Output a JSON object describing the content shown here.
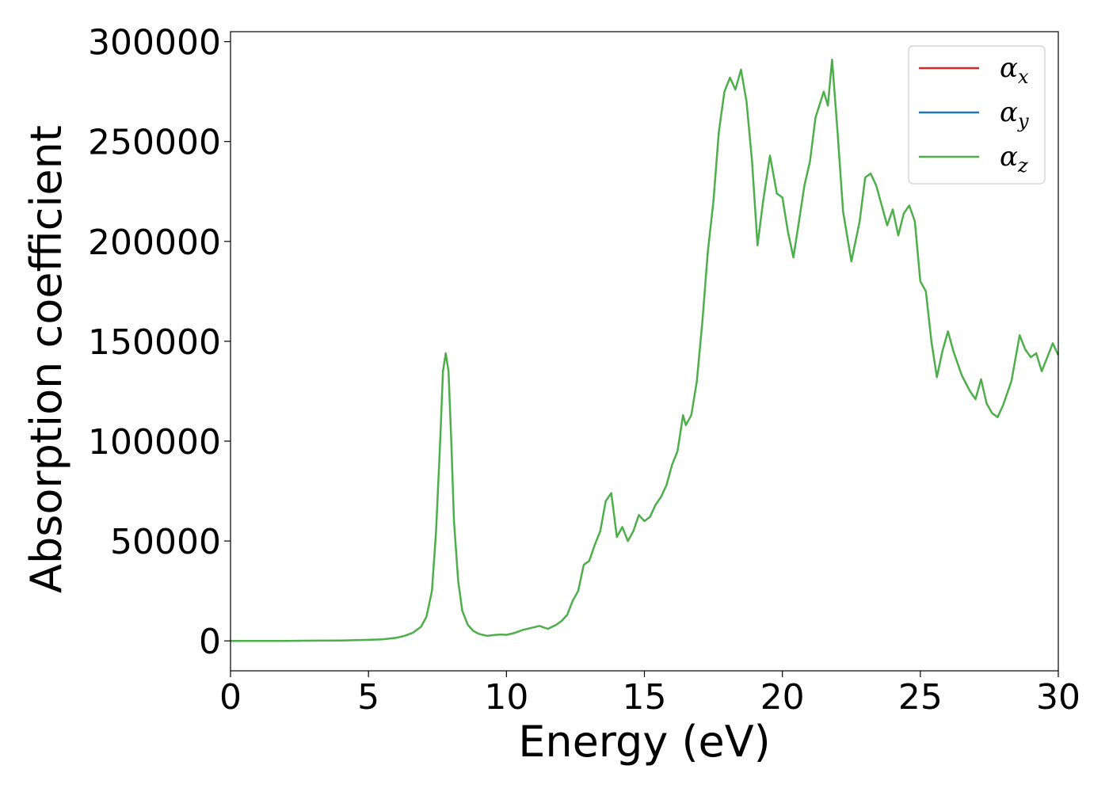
{
  "chart_data": {
    "type": "line",
    "title": "",
    "xlabel": "Energy (eV)",
    "ylabel": "Absorption coefficient",
    "xlim": [
      0,
      30
    ],
    "ylim": [
      -15000,
      305000
    ],
    "xticks": [
      0,
      5,
      10,
      15,
      20,
      25,
      30
    ],
    "yticks": [
      0,
      50000,
      100000,
      150000,
      200000,
      250000,
      300000
    ],
    "grid": false,
    "legend_position": "top-right",
    "legend": [
      {
        "symbol": "α",
        "subscript": "x",
        "color": "#d62728"
      },
      {
        "symbol": "α",
        "subscript": "y",
        "color": "#1f77b4"
      },
      {
        "symbol": "α",
        "subscript": "z",
        "color": "#4daf4a"
      }
    ],
    "series": [
      {
        "color": "#4daf4a",
        "x": [
          0,
          1,
          2,
          3,
          4,
          5,
          5.5,
          6,
          6.3,
          6.6,
          6.9,
          7.1,
          7.3,
          7.45,
          7.6,
          7.7,
          7.8,
          7.9,
          8.0,
          8.1,
          8.25,
          8.4,
          8.6,
          8.8,
          9.0,
          9.3,
          9.6,
          9.8,
          10.0,
          10.3,
          10.6,
          10.9,
          11.2,
          11.5,
          11.8,
          12.0,
          12.2,
          12.4,
          12.6,
          12.8,
          13.0,
          13.2,
          13.4,
          13.6,
          13.8,
          14.0,
          14.2,
          14.4,
          14.6,
          14.8,
          15.0,
          15.2,
          15.4,
          15.6,
          15.8,
          16.0,
          16.2,
          16.4,
          16.5,
          16.7,
          16.9,
          17.1,
          17.3,
          17.5,
          17.7,
          17.9,
          18.1,
          18.3,
          18.5,
          18.7,
          18.9,
          19.1,
          19.3,
          19.55,
          19.8,
          20.0,
          20.2,
          20.4,
          20.6,
          20.8,
          21.0,
          21.2,
          21.5,
          21.65,
          21.8,
          22.0,
          22.2,
          22.5,
          22.8,
          23.0,
          23.2,
          23.4,
          23.6,
          23.8,
          24.0,
          24.2,
          24.4,
          24.6,
          24.8,
          25.0,
          25.2,
          25.4,
          25.6,
          25.8,
          26.0,
          26.2,
          26.5,
          26.8,
          27.0,
          27.2,
          27.4,
          27.6,
          27.8,
          28.0,
          28.3,
          28.6,
          28.8,
          29.0,
          29.2,
          29.4,
          29.6,
          29.8,
          30.0
        ],
        "y": [
          0,
          0,
          0,
          100,
          200,
          500,
          800,
          1500,
          2500,
          4000,
          7000,
          12000,
          25000,
          55000,
          100000,
          135000,
          144000,
          135000,
          100000,
          60000,
          30000,
          15000,
          8000,
          5000,
          3500,
          2500,
          3000,
          3200,
          3000,
          4000,
          5500,
          6500,
          7500,
          6000,
          8000,
          10000,
          13000,
          20000,
          25000,
          38000,
          40000,
          48000,
          55000,
          70000,
          74000,
          52000,
          57000,
          50000,
          55000,
          63000,
          60000,
          62000,
          68000,
          72000,
          78000,
          88000,
          95000,
          113000,
          108000,
          113000,
          130000,
          160000,
          195000,
          220000,
          255000,
          275000,
          282000,
          276000,
          286000,
          270000,
          240000,
          198000,
          220000,
          243000,
          224000,
          222000,
          205000,
          192000,
          210000,
          228000,
          240000,
          262000,
          275000,
          268000,
          291000,
          255000,
          215000,
          190000,
          210000,
          232000,
          234000,
          228000,
          218000,
          208000,
          216000,
          203000,
          214000,
          218000,
          210000,
          180000,
          175000,
          150000,
          132000,
          145000,
          155000,
          145000,
          133000,
          125000,
          121000,
          131000,
          119000,
          114000,
          112000,
          118000,
          130000,
          153000,
          146000,
          142000,
          144000,
          135000,
          142000,
          149000,
          143000
        ]
      }
    ]
  }
}
